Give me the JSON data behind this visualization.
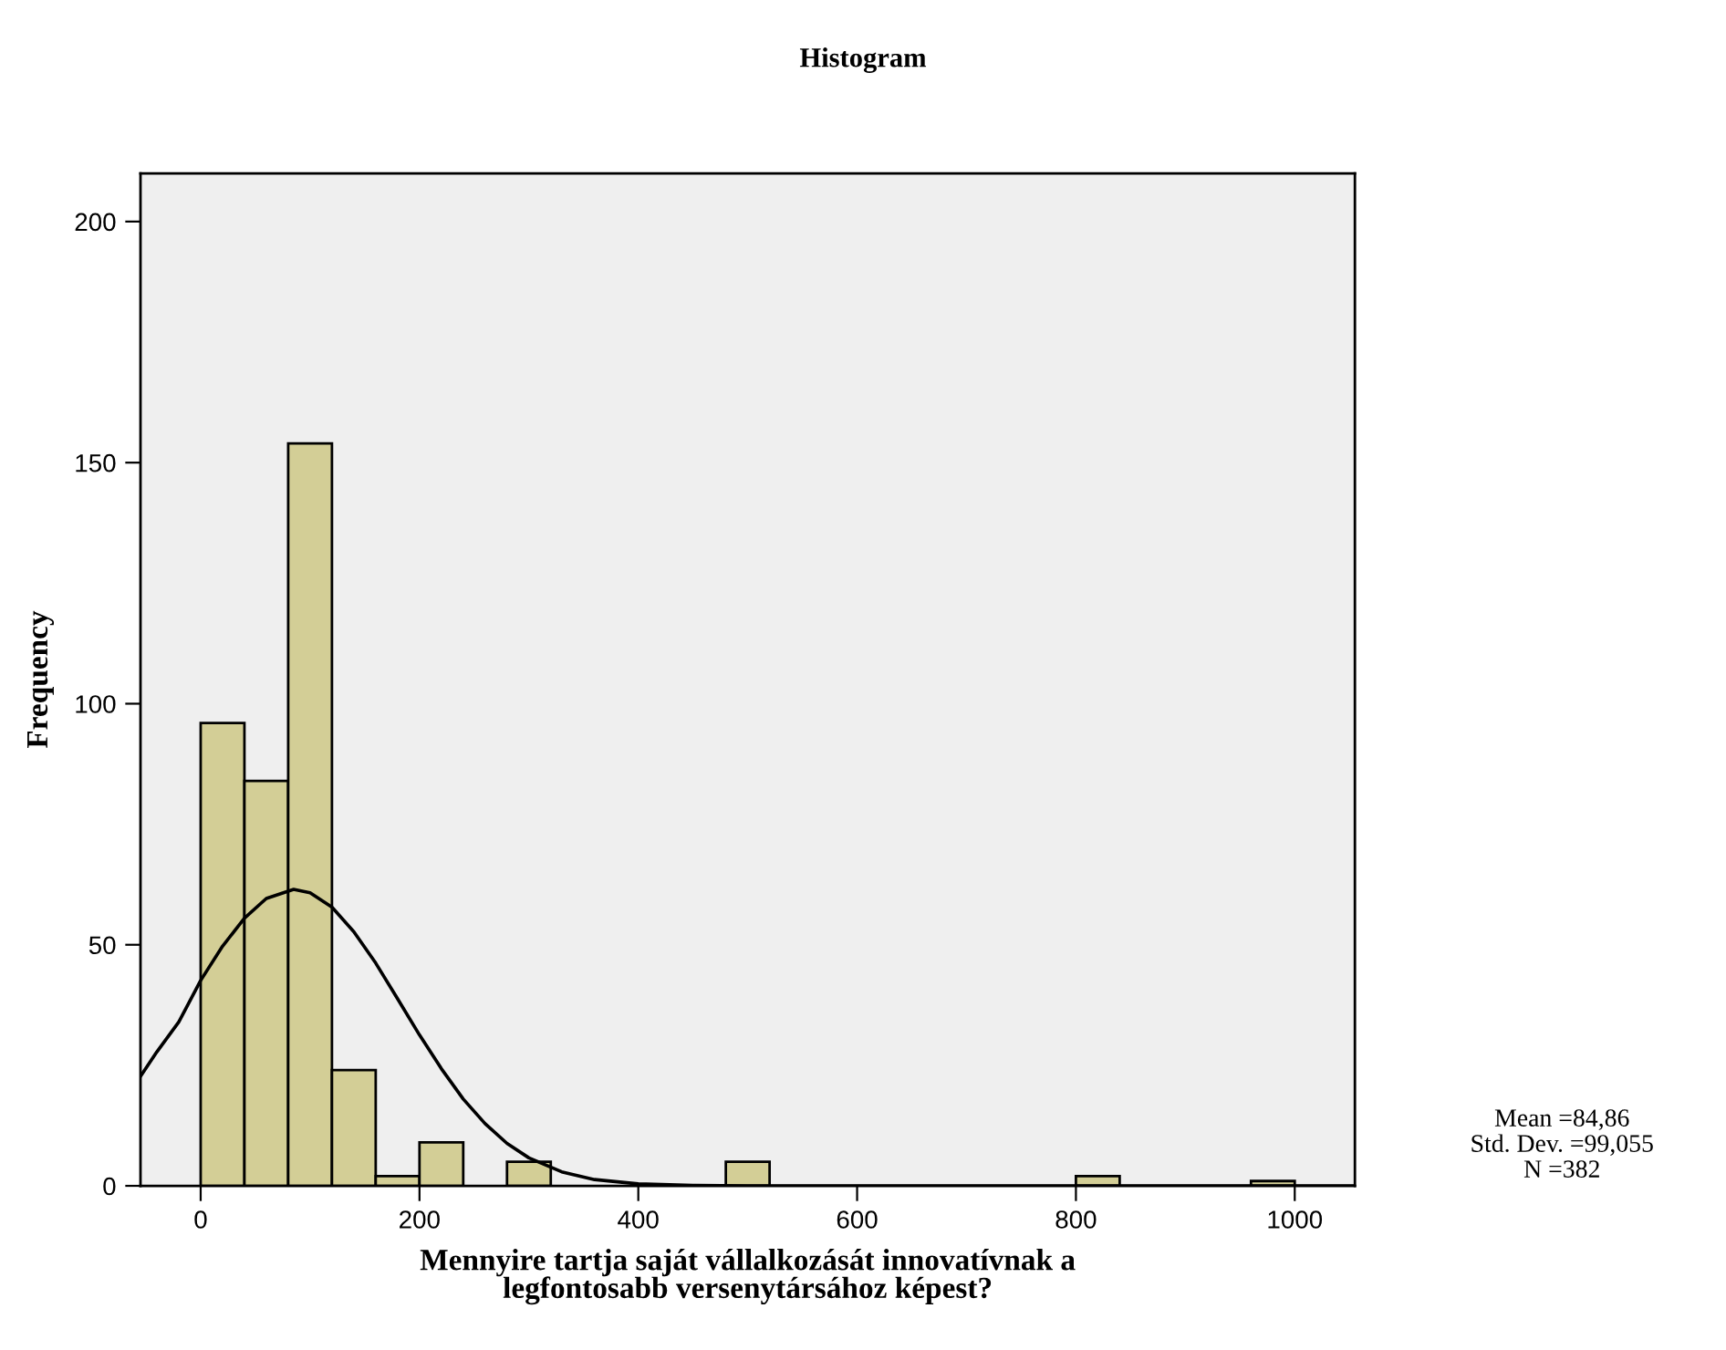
{
  "chart_data": {
    "type": "histogram",
    "title": "Histogram",
    "xlabel": "Mennyire tartja saját vállalkozását innovatívnak a legfontosabb versenytársához képest?",
    "ylabel": "Frequency",
    "bins": [
      0,
      40,
      80,
      120,
      160,
      200,
      240,
      280,
      320,
      360,
      400,
      440,
      480,
      520,
      560,
      600,
      640,
      680,
      720,
      760,
      800,
      840,
      880,
      920,
      960,
      1000
    ],
    "values": [
      96,
      84,
      154,
      24,
      2,
      9,
      0,
      5,
      0,
      0,
      0,
      0,
      5,
      0,
      0,
      0,
      0,
      0,
      0,
      0,
      2,
      0,
      0,
      0,
      1
    ],
    "color": "#d3ce96",
    "series": [
      {
        "type": "line",
        "color": "#000000",
        "x": [
          -55,
          -40,
          -20,
          0,
          20,
          40,
          60,
          85,
          100,
          120,
          140,
          160,
          180,
          200,
          220,
          240,
          260,
          280,
          300,
          330,
          360,
          400,
          450,
          500,
          1055
        ],
        "values": [
          22.7,
          27.8,
          34.0,
          42.6,
          49.7,
          55.5,
          59.6,
          61.5,
          60.8,
          57.8,
          52.7,
          46.2,
          38.8,
          31.3,
          24.3,
          18.0,
          12.9,
          8.8,
          5.8,
          2.9,
          1.3,
          0.4,
          0.1,
          0,
          0
        ]
      }
    ],
    "xlim": [
      -55,
      1055
    ],
    "ylim": [
      0,
      210
    ],
    "xticks": [
      0,
      200,
      400,
      600,
      800,
      1000
    ],
    "yticks": [
      0,
      50,
      100,
      150,
      200
    ],
    "grid": false,
    "legend": false,
    "annotations": [
      "Mean =84,86",
      "Std. Dev. =99,055",
      "N =382"
    ]
  }
}
